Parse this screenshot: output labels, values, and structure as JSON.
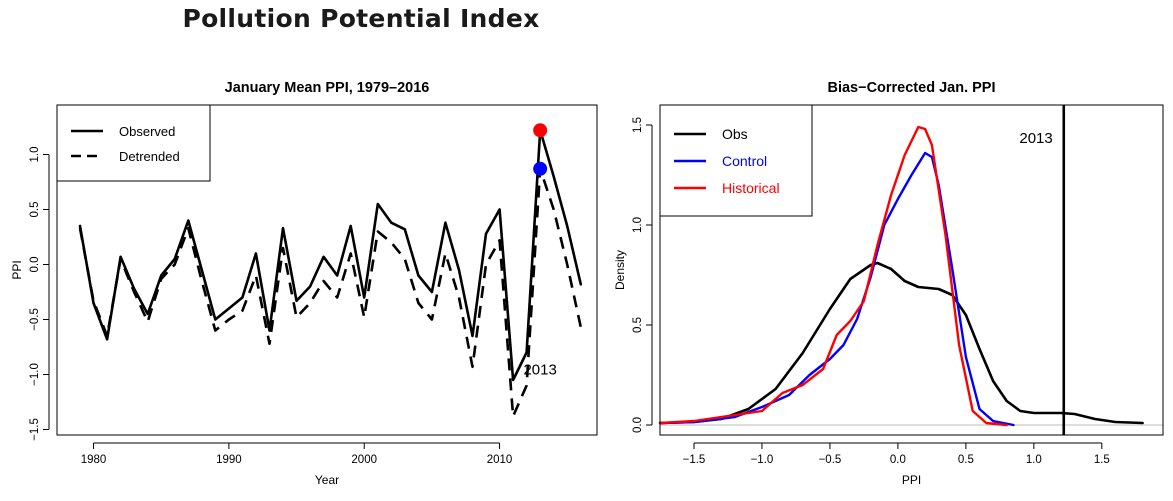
{
  "page_title": "Pollution Potential Index",
  "chart_data": [
    {
      "type": "line",
      "title": "January Mean PPI, 1979–2016",
      "xlabel": "Year",
      "ylabel": "PPI",
      "xlim": [
        1977.3,
        2017.2
      ],
      "ylim": [
        -1.55,
        1.45
      ],
      "xticks": [
        1980,
        1990,
        2000,
        2010
      ],
      "xtick_labels": [
        "1980",
        "1990",
        "2000",
        "2010"
      ],
      "yticks": [
        -1.5,
        -1.0,
        -0.5,
        0.0,
        0.5,
        1.0
      ],
      "ytick_labels": [
        "−1.5",
        "−1.0",
        "−0.5",
        "0.0",
        "0.5",
        "1.0"
      ],
      "legend": {
        "position": "top-left",
        "entries": [
          "Observed",
          "Detrended"
        ]
      },
      "annotation": "2013",
      "x": [
        1979,
        1980,
        1981,
        1982,
        1983,
        1984,
        1985,
        1986,
        1987,
        1988,
        1989,
        1990,
        1991,
        1992,
        1993,
        1994,
        1995,
        1996,
        1997,
        1998,
        1999,
        2000,
        2001,
        2002,
        2003,
        2004,
        2005,
        2006,
        2007,
        2008,
        2009,
        2010,
        2011,
        2012,
        2013,
        2014,
        2015,
        2016
      ],
      "series": [
        {
          "name": "Observed",
          "style": "solid",
          "color": "#000000",
          "values": [
            0.35,
            -0.35,
            -0.68,
            0.07,
            -0.22,
            -0.45,
            -0.1,
            0.05,
            0.4,
            -0.05,
            -0.5,
            -0.4,
            -0.3,
            0.1,
            -0.6,
            0.33,
            -0.33,
            -0.2,
            0.07,
            -0.1,
            0.35,
            -0.3,
            0.55,
            0.38,
            0.32,
            -0.1,
            -0.25,
            0.38,
            -0.05,
            -0.65,
            0.28,
            0.5,
            -1.05,
            -0.8,
            1.22,
            0.8,
            0.35,
            -0.18
          ]
        },
        {
          "name": "Detrended",
          "style": "dashed",
          "color": "#000000",
          "values": [
            0.33,
            -0.33,
            -0.65,
            0.05,
            -0.25,
            -0.52,
            -0.13,
            0.0,
            0.33,
            -0.15,
            -0.6,
            -0.5,
            -0.42,
            -0.1,
            -0.72,
            0.15,
            -0.48,
            -0.35,
            -0.15,
            -0.3,
            0.1,
            -0.48,
            0.3,
            0.2,
            0.05,
            -0.35,
            -0.5,
            0.1,
            -0.3,
            -0.93,
            0.0,
            0.22,
            -1.38,
            -1.1,
            0.87,
            0.5,
            0.0,
            -0.57
          ]
        }
      ],
      "highlights": [
        {
          "series": "Observed",
          "x": 2013,
          "y": 1.22,
          "color": "#ff0000"
        },
        {
          "series": "Detrended",
          "x": 2013,
          "y": 0.87,
          "color": "#0000ff"
        }
      ]
    },
    {
      "type": "line",
      "title": "Bias−Corrected Jan. PPI",
      "xlabel": "PPI",
      "ylabel": "Density",
      "xlim": [
        -1.75,
        1.95
      ],
      "ylim": [
        -0.05,
        1.6
      ],
      "xticks": [
        -1.5,
        -1.0,
        -0.5,
        0.0,
        0.5,
        1.0,
        1.5
      ],
      "xtick_labels": [
        "−1.5",
        "−1.0",
        "−0.5",
        "0.0",
        "0.5",
        "1.0",
        "1.5"
      ],
      "yticks": [
        0.0,
        0.5,
        1.0,
        1.5
      ],
      "ytick_labels": [
        "0.0",
        "0.5",
        "1.0",
        "1.5"
      ],
      "legend": {
        "position": "top-left",
        "entries": [
          "Obs",
          "Control",
          "Historical"
        ]
      },
      "vline": {
        "x": 1.22,
        "label": "2013"
      },
      "baseline": 0,
      "series": [
        {
          "name": "Obs",
          "color": "#000000",
          "x": [
            -1.75,
            -1.5,
            -1.3,
            -1.1,
            -0.9,
            -0.7,
            -0.5,
            -0.35,
            -0.2,
            -0.15,
            -0.05,
            0.05,
            0.15,
            0.3,
            0.4,
            0.5,
            0.6,
            0.7,
            0.8,
            0.9,
            1.0,
            1.1,
            1.2,
            1.3,
            1.45,
            1.6,
            1.8
          ],
          "y": [
            0.01,
            0.015,
            0.03,
            0.08,
            0.18,
            0.36,
            0.58,
            0.73,
            0.8,
            0.81,
            0.78,
            0.72,
            0.69,
            0.68,
            0.65,
            0.55,
            0.38,
            0.22,
            0.12,
            0.07,
            0.06,
            0.06,
            0.06,
            0.055,
            0.03,
            0.015,
            0.01
          ]
        },
        {
          "name": "Control",
          "color": "#0000ff",
          "x": [
            -1.75,
            -1.5,
            -1.2,
            -1.0,
            -0.8,
            -0.65,
            -0.5,
            -0.4,
            -0.3,
            -0.2,
            -0.1,
            0.0,
            0.1,
            0.2,
            0.25,
            0.3,
            0.4,
            0.5,
            0.6,
            0.7,
            0.85
          ],
          "y": [
            0.01,
            0.015,
            0.04,
            0.09,
            0.15,
            0.25,
            0.33,
            0.4,
            0.53,
            0.74,
            1.0,
            1.13,
            1.25,
            1.36,
            1.34,
            1.2,
            0.78,
            0.34,
            0.08,
            0.02,
            0.0
          ]
        },
        {
          "name": "Historical",
          "color": "#ff0000",
          "x": [
            -1.75,
            -1.5,
            -1.3,
            -1.0,
            -0.85,
            -0.7,
            -0.55,
            -0.45,
            -0.35,
            -0.25,
            -0.15,
            -0.05,
            0.05,
            0.15,
            0.2,
            0.25,
            0.35,
            0.45,
            0.55,
            0.65,
            0.8
          ],
          "y": [
            0.01,
            0.02,
            0.04,
            0.07,
            0.16,
            0.2,
            0.28,
            0.45,
            0.52,
            0.62,
            0.9,
            1.15,
            1.35,
            1.49,
            1.48,
            1.4,
            0.95,
            0.4,
            0.07,
            0.01,
            0.0
          ]
        }
      ]
    }
  ]
}
